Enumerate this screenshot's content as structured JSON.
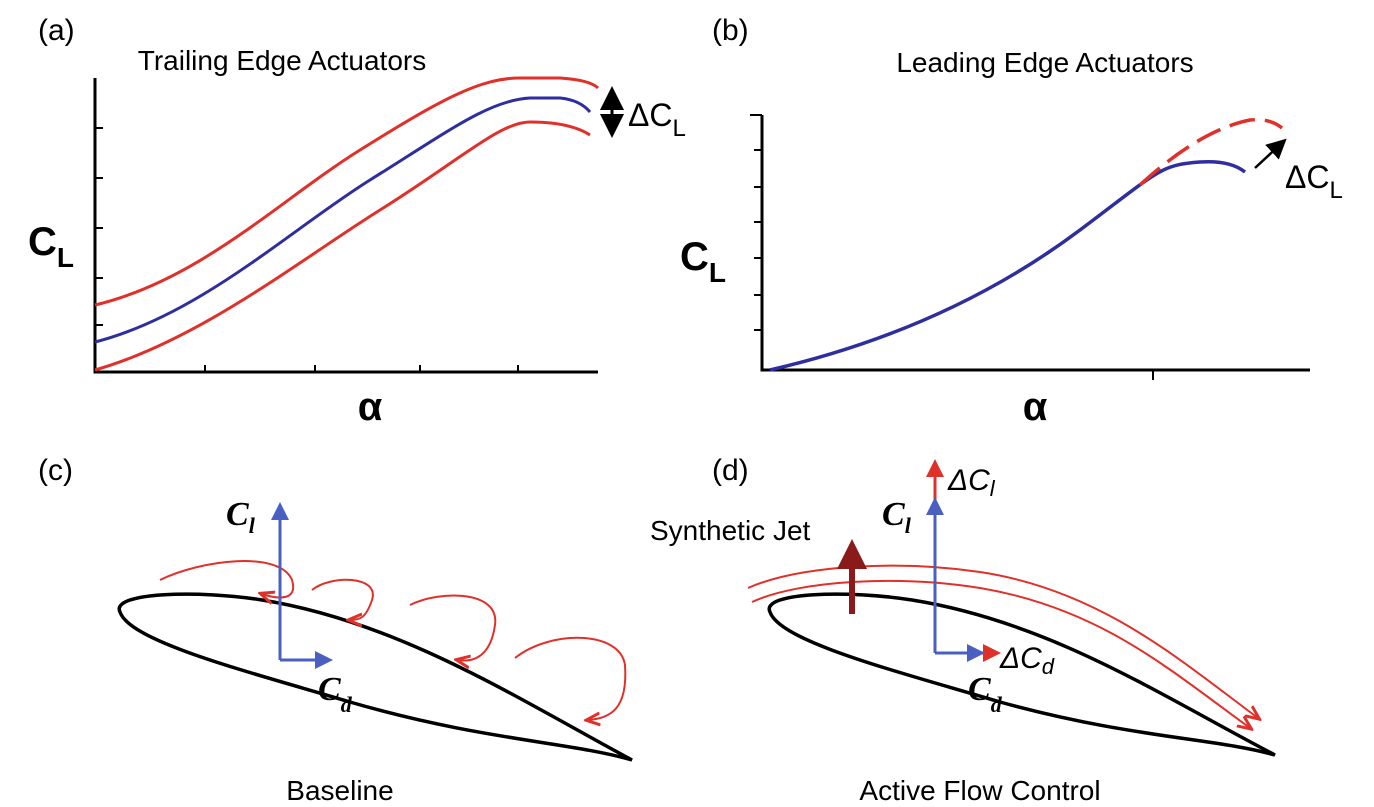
{
  "panels": {
    "a": {
      "label": "(a)",
      "title": "Trailing Edge Actuators",
      "y_label": {
        "symbol": "C",
        "subscript": "L"
      },
      "x_label": "α",
      "annotation": {
        "prefix": "ΔC",
        "subscript": "L"
      }
    },
    "b": {
      "label": "(b)",
      "title": "Leading Edge Actuators",
      "y_label": {
        "symbol": "C",
        "subscript": "L"
      },
      "x_label": "α",
      "annotation": {
        "prefix": "ΔC",
        "subscript": "L"
      }
    },
    "c": {
      "label": "(c)",
      "lift": {
        "symbol": "C",
        "subscript": "l"
      },
      "drag": {
        "symbol": "C",
        "subscript": "d"
      },
      "caption": "Baseline"
    },
    "d": {
      "label": "(d)",
      "jet": "Synthetic Jet",
      "lift": {
        "symbol": "C",
        "subscript": "l"
      },
      "drag": {
        "symbol": "C",
        "subscript": "d"
      },
      "delta_lift": {
        "prefix": "ΔC",
        "subscript": "l"
      },
      "delta_drag": {
        "prefix": "ΔC",
        "subscript": "d"
      },
      "caption": "Active Flow Control"
    }
  }
}
